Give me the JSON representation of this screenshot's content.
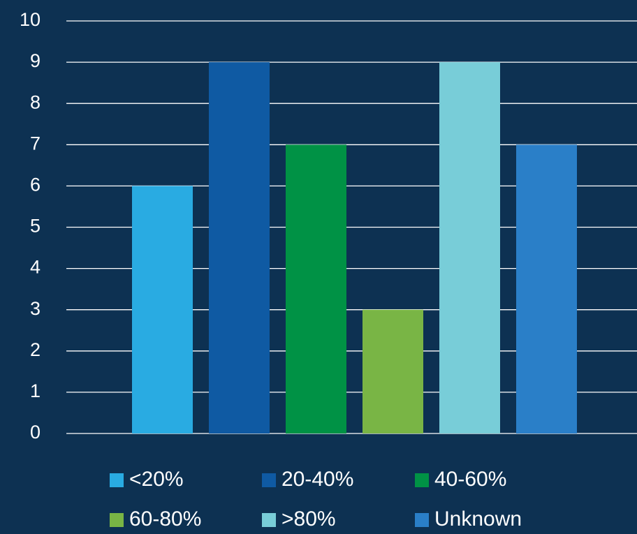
{
  "chart_data": {
    "type": "bar",
    "categories": [
      null
    ],
    "series": [
      {
        "name": "<20%",
        "color": "#29abe2",
        "values": [
          6
        ]
      },
      {
        "name": "20-40%",
        "color": "#0f5aa3",
        "values": [
          9
        ]
      },
      {
        "name": "40-60%",
        "color": "#009245",
        "values": [
          7
        ]
      },
      {
        "name": "60-80%",
        "color": "#79b545",
        "values": [
          3
        ]
      },
      {
        "name": ">80%",
        "color": "#78cdd8",
        "values": [
          9
        ]
      },
      {
        "name": "Unknown",
        "color": "#2a7fc8",
        "values": [
          7
        ]
      }
    ],
    "ylim": [
      0,
      10
    ],
    "yticks": [
      0,
      1,
      2,
      3,
      4,
      5,
      6,
      7,
      8,
      9,
      10
    ],
    "grid": true,
    "legend": "bottom"
  }
}
